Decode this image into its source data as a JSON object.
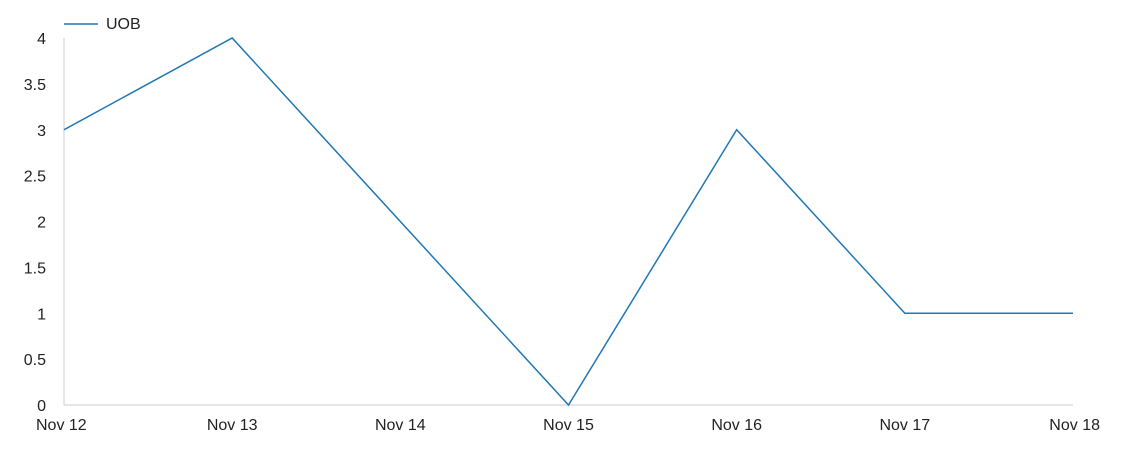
{
  "chart_data": {
    "type": "line",
    "title": "",
    "xlabel": "",
    "ylabel": "",
    "categories": [
      "Nov 12",
      "Nov 13",
      "Nov 14",
      "Nov 15",
      "Nov 16",
      "Nov 17",
      "Nov 18"
    ],
    "series": [
      {
        "name": "UOB",
        "color": "#1f77b4",
        "values": [
          3,
          4,
          2,
          0,
          3,
          1,
          1
        ]
      }
    ],
    "ylim": [
      0,
      4
    ],
    "yticks": [
      "0",
      "0.5",
      "1",
      "1.5",
      "2",
      "2.5",
      "3",
      "3.5",
      "4"
    ],
    "grid": false,
    "legend_position": "top-left"
  }
}
